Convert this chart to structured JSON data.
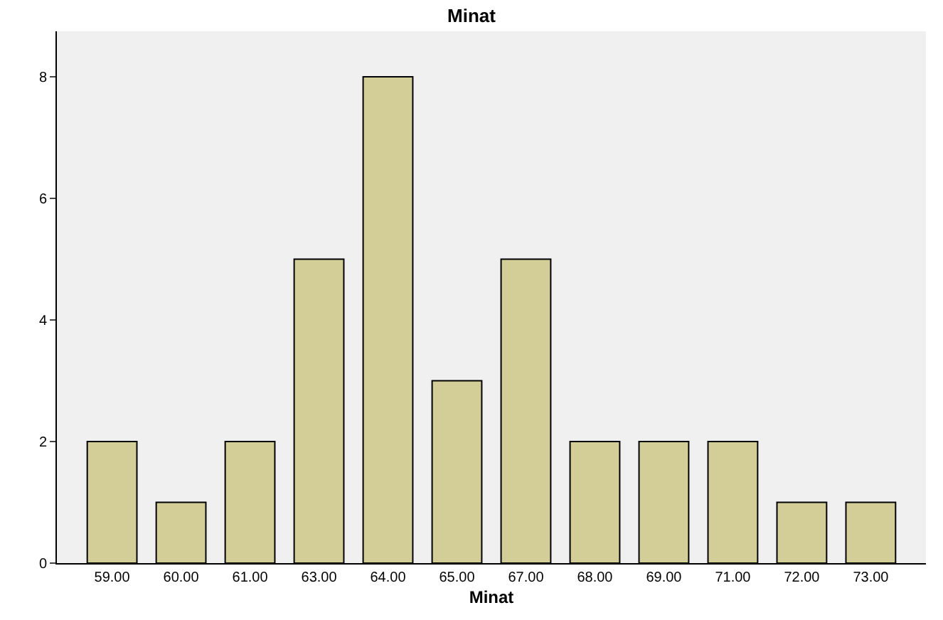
{
  "chart_data": {
    "type": "bar",
    "title": "Minat",
    "xlabel": "Minat",
    "categories": [
      "59.00",
      "60.00",
      "61.00",
      "63.00",
      "64.00",
      "65.00",
      "67.00",
      "68.00",
      "69.00",
      "71.00",
      "72.00",
      "73.00"
    ],
    "values": [
      2,
      1,
      2,
      5,
      8,
      3,
      5,
      2,
      2,
      2,
      1,
      1
    ],
    "color": "#d3ce97",
    "ylim": [
      0,
      8.75
    ],
    "yticks": [
      0,
      2,
      4,
      6,
      8
    ],
    "grid": false
  }
}
